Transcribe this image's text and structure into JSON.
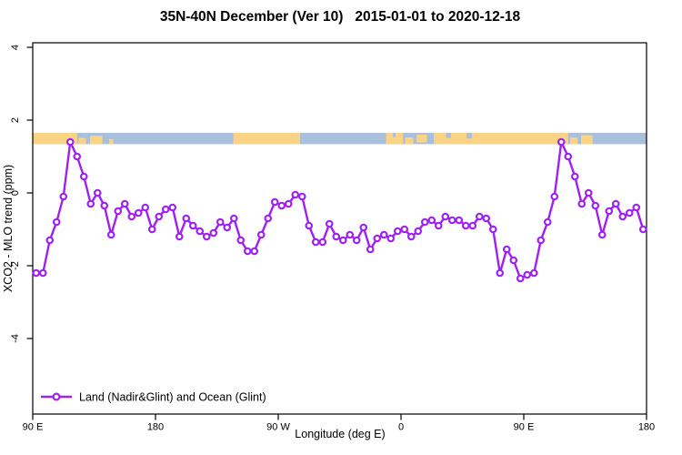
{
  "header": {
    "title": "35N-40N December (Ver 10)   2015-01-01 to 2020-12-18"
  },
  "chart_data": {
    "type": "line",
    "title": "35N-40N December (Ver 10)   2015-01-01 to 2020-12-18",
    "xlabel": "Longitude (deg E)",
    "ylabel": "XCO2 - MLO trend (ppm)",
    "xlim": [
      90,
      540
    ],
    "ylim": [
      -6.2,
      4.2
    ],
    "grid": false,
    "x_ticks": [
      {
        "value": 90,
        "label": "90 E"
      },
      {
        "value": 180,
        "label": "180"
      },
      {
        "value": 270,
        "label": "90 W"
      },
      {
        "value": 360,
        "label": "0"
      },
      {
        "value": 450,
        "label": "90 E"
      },
      {
        "value": 540,
        "label": "180"
      }
    ],
    "y_ticks": [
      {
        "value": 4,
        "label": "4"
      },
      {
        "value": 2,
        "label": "2"
      },
      {
        "value": 0,
        "label": "0"
      },
      {
        "value": -2,
        "label": "-2"
      },
      {
        "value": -4,
        "label": "-4"
      }
    ],
    "legend": {
      "position": "bottom-left-inside",
      "entries": [
        {
          "label": "Land (Nadir&Glint) and Ocean (Glint)",
          "color": "#A020F0",
          "marker": "open-circle-on-line"
        }
      ]
    },
    "series": [
      {
        "name": "Land (Nadir&Glint) and Ocean (Glint)",
        "color": "#A020F0",
        "marker": "open-circle",
        "x": [
          92.5,
          97.5,
          102.5,
          107.5,
          112.5,
          117.5,
          122.5,
          127.5,
          132.5,
          137.5,
          142.5,
          147.5,
          152.5,
          157.5,
          162.5,
          167.5,
          172.5,
          177.5,
          182.5,
          187.5,
          192.5,
          197.5,
          202.5,
          207.5,
          212.5,
          217.5,
          222.5,
          227.5,
          232.5,
          237.5,
          242.5,
          247.5,
          252.5,
          257.5,
          262.5,
          267.5,
          272.5,
          277.5,
          282.5,
          287.5,
          292.5,
          297.5,
          302.5,
          307.5,
          312.5,
          317.5,
          322.5,
          327.5,
          332.5,
          337.5,
          342.5,
          347.5,
          352.5,
          357.5,
          362.5,
          367.5,
          372.5,
          377.5,
          382.5,
          387.5,
          392.5,
          397.5,
          402.5,
          407.5,
          412.5,
          417.5,
          422.5,
          427.5,
          432.5,
          437.5,
          442.5,
          447.5,
          452.5,
          457.5,
          462.5,
          467.5,
          472.5,
          477.5,
          482.5,
          487.5,
          492.5,
          497.5,
          502.5,
          507.5,
          512.5,
          517.5,
          522.5,
          527.5,
          532.5,
          537.5
        ],
        "y": [
          -2.2,
          -2.2,
          -1.3,
          -0.8,
          -0.1,
          1.4,
          1.0,
          0.45,
          -0.3,
          0.0,
          -0.35,
          -1.15,
          -0.5,
          -0.3,
          -0.65,
          -0.55,
          -0.4,
          -1.0,
          -0.65,
          -0.45,
          -0.4,
          -1.2,
          -0.7,
          -0.9,
          -1.05,
          -1.2,
          -1.1,
          -0.8,
          -0.95,
          -0.7,
          -1.3,
          -1.6,
          -1.6,
          -1.15,
          -0.7,
          -0.25,
          -0.35,
          -0.3,
          -0.05,
          -0.1,
          -0.9,
          -1.35,
          -1.35,
          -0.85,
          -1.2,
          -1.3,
          -1.15,
          -1.3,
          -0.95,
          -1.55,
          -1.25,
          -1.15,
          -1.25,
          -1.05,
          -1.0,
          -1.2,
          -1.05,
          -0.8,
          -0.75,
          -0.9,
          -0.65,
          -0.75,
          -0.75,
          -0.9,
          -0.9,
          -0.65,
          -0.7,
          -1.0,
          -2.2,
          -1.55,
          -1.85,
          -2.35,
          -2.25,
          -2.2,
          -1.3,
          -0.8,
          -0.1,
          1.4,
          1.0,
          0.45,
          -0.3,
          0.0,
          -0.35,
          -1.15,
          -0.5,
          -0.3,
          -0.65,
          -0.55,
          -0.4,
          -1.0
        ]
      }
    ],
    "land_ocean_band": {
      "description": "horizontal land/ocean surface-type strip drawn across the plot",
      "value_range": [
        1.34,
        1.65
      ],
      "ocean_color": "#A9BFDC",
      "land_color": "#FBD384",
      "land_segments": [
        {
          "from": 90,
          "to": 122.5,
          "top": 0,
          "bottom": 1
        },
        {
          "from": 123.5,
          "to": 129,
          "top": 0.45,
          "bottom": 1
        },
        {
          "from": 132,
          "to": 141,
          "top": 0.25,
          "bottom": 1
        },
        {
          "from": 146,
          "to": 149,
          "top": 0.55,
          "bottom": 1
        },
        {
          "from": 237,
          "to": 286,
          "top": 0,
          "bottom": 1
        },
        {
          "from": 349,
          "to": 361.5,
          "top": 0,
          "bottom": 1
        },
        {
          "from": 363,
          "to": 369,
          "top": 0.4,
          "bottom": 1
        },
        {
          "from": 371.5,
          "to": 379,
          "top": 0.15,
          "bottom": 0.85
        },
        {
          "from": 384,
          "to": 482.5,
          "top": 0,
          "bottom": 1
        },
        {
          "from": 484,
          "to": 489.5,
          "top": 0.4,
          "bottom": 1
        },
        {
          "from": 492,
          "to": 500.5,
          "top": 0.2,
          "bottom": 1
        }
      ],
      "ocean_patches": [
        {
          "from": 354,
          "to": 356,
          "top": 0,
          "bottom": 0.35
        },
        {
          "from": 393,
          "to": 396.5,
          "top": 0,
          "bottom": 0.45
        },
        {
          "from": 408,
          "to": 412,
          "top": 0,
          "bottom": 0.5
        }
      ]
    }
  }
}
